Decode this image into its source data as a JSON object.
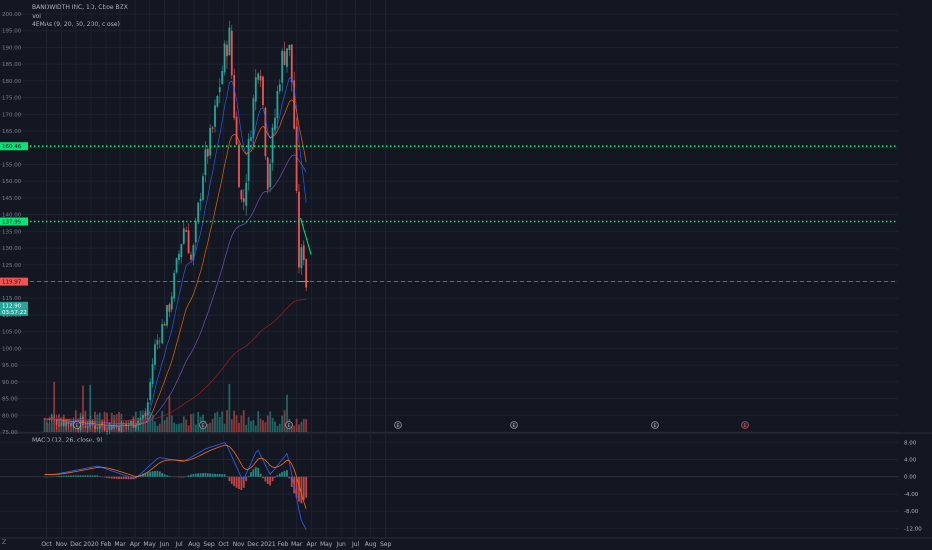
{
  "header": {
    "symbol": "BANDWIDTH INC, 1D, Cboe BZX",
    "vol_label": "Vol",
    "ema_label": "4EMAs (9, 20, 50, 200, close)",
    "macd_label": "MACD (12, 26, close, 9)"
  },
  "colors": {
    "background": "#131722",
    "grid": "#1e222d",
    "up": "#26a69a",
    "down": "#ef5350",
    "level_green": "#00e676",
    "level_red": "#f05350",
    "macd_line": "#2962ff",
    "signal_line": "#ff6d00"
  },
  "chart_data": [
    {
      "type": "candlestick",
      "name": "price",
      "ylim": [
        75,
        200
      ],
      "y_ticks": [
        "200.00",
        "195.00",
        "190.00",
        "185.00",
        "180.00",
        "175.00",
        "170.00",
        "165.00",
        "160.00",
        "155.00",
        "150.00",
        "145.00",
        "140.00",
        "135.00",
        "130.00",
        "125.00",
        "120.00",
        "115.00",
        "110.00",
        "105.00",
        "100.00",
        "95.00",
        "90.00",
        "85.00",
        "80.00",
        "75.00"
      ],
      "x_ticks": [
        "Oct",
        "Nov",
        "Dec",
        "2020",
        "Feb",
        "Mar",
        "Apr",
        "May",
        "Jun",
        "Jul",
        "Aug",
        "Sep",
        "Oct",
        "Nov",
        "Dec",
        "2021",
        "Feb",
        "Mar",
        "Apr",
        "May",
        "Jun",
        "Jul",
        "Aug",
        "Sep"
      ],
      "level_labels": [
        {
          "value": 160.46,
          "text": "160.46",
          "color": "#00e676"
        },
        {
          "value": 137.95,
          "text": "137.95",
          "color": "#00e676"
        },
        {
          "value": 119.97,
          "text": "119.97",
          "color": "#f05350"
        }
      ],
      "last_price_label": "112.90",
      "countdown_label": "03:57:22",
      "event_markers": [
        "E",
        "E",
        "E",
        "E",
        "E",
        "E",
        "E",
        "E"
      ],
      "key_points": [
        {
          "t": "2019-09-27",
          "close": 79
        },
        {
          "t": "2019-12-31",
          "close": 77
        },
        {
          "t": "2020-03-16",
          "close": 77
        },
        {
          "t": "2020-04-24",
          "close": 80
        },
        {
          "t": "2020-05-11",
          "close": 100
        },
        {
          "t": "2020-06-10",
          "close": 112
        },
        {
          "t": "2020-07-13",
          "close": 138
        },
        {
          "t": "2020-07-27",
          "close": 125
        },
        {
          "t": "2020-08-19",
          "close": 153
        },
        {
          "t": "2020-09-08",
          "close": 165
        },
        {
          "t": "2020-09-24",
          "close": 180
        },
        {
          "t": "2020-10-12",
          "close": 195
        },
        {
          "t": "2020-10-28",
          "close": 160
        },
        {
          "t": "2020-11-09",
          "close": 140
        },
        {
          "t": "2020-11-25",
          "close": 165
        },
        {
          "t": "2020-12-14",
          "close": 190
        },
        {
          "t": "2020-12-31",
          "close": 150
        },
        {
          "t": "2021-01-12",
          "close": 165
        },
        {
          "t": "2021-01-27",
          "close": 185
        },
        {
          "t": "2021-02-12",
          "close": 192
        },
        {
          "t": "2021-02-22",
          "close": 175
        },
        {
          "t": "2021-03-05",
          "close": 125
        },
        {
          "t": "2021-03-15",
          "close": 130
        },
        {
          "t": "2021-03-24",
          "close": 112.9
        }
      ],
      "trendline": {
        "from": {
          "t": "2021-03-09",
          "value": 139
        },
        "to": {
          "t": "2021-03-31",
          "value": 128
        }
      },
      "support_segment": {
        "from": {
          "t": "2021-03-05",
          "value": 120
        },
        "to": {
          "t": "2021-03-26",
          "value": 120
        }
      }
    },
    {
      "type": "bar",
      "name": "Vol",
      "description_levels": "volume histogram overlaid at bottom of price pane"
    },
    {
      "type": "line",
      "name": "MACD (12, 26, close, 9)",
      "ylim": [
        -14,
        9
      ],
      "y_ticks": [
        "8.00",
        "4.00",
        "0.00",
        "-4.00",
        "-8.00",
        "-12.00"
      ],
      "current_value_label": "0.00",
      "key_points": [
        {
          "t": "2019-10-15",
          "macd": 0.5
        },
        {
          "t": "2020-01-15",
          "macd": 2.5
        },
        {
          "t": "2020-04-01",
          "macd": -0.5
        },
        {
          "t": "2020-05-20",
          "macd": 4.5
        },
        {
          "t": "2020-07-10",
          "macd": 3.5
        },
        {
          "t": "2020-08-25",
          "macd": 6.5
        },
        {
          "t": "2020-10-05",
          "macd": 8.0
        },
        {
          "t": "2020-11-10",
          "macd": -1.0
        },
        {
          "t": "2020-12-10",
          "macd": 6.5
        },
        {
          "t": "2021-01-05",
          "macd": 0.5
        },
        {
          "t": "2021-02-10",
          "macd": 5.5
        },
        {
          "t": "2021-03-10",
          "macd": -10.0
        },
        {
          "t": "2021-03-24",
          "macd": -13.0
        }
      ]
    }
  ]
}
